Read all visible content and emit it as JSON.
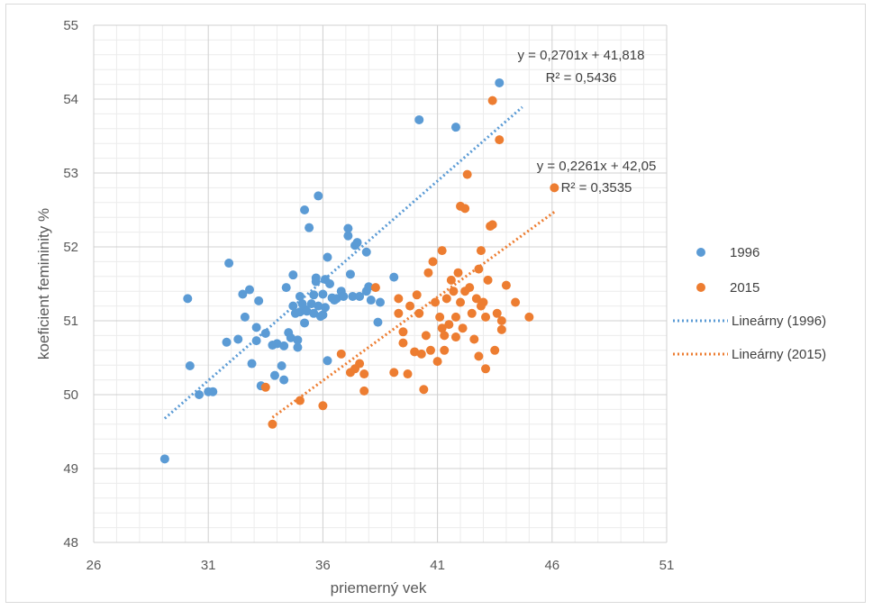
{
  "chart_data": {
    "type": "scatter",
    "title": "",
    "xlabel": "priemerný vek",
    "ylabel": "koeficient femininity %",
    "xlim": [
      26,
      51
    ],
    "ylim": [
      48,
      55
    ],
    "x_ticks": [
      26,
      31,
      36,
      41,
      46,
      51
    ],
    "y_ticks": [
      48,
      49,
      50,
      51,
      52,
      53,
      54,
      55
    ],
    "grid": true,
    "legend_position": "right",
    "series": [
      {
        "name": "1996",
        "color": "#5b9bd5",
        "points": [
          [
            29.1,
            49.13
          ],
          [
            30.2,
            50.39
          ],
          [
            30.1,
            51.3
          ],
          [
            30.6,
            50.0
          ],
          [
            31.0,
            50.04
          ],
          [
            31.2,
            50.04
          ],
          [
            31.8,
            50.71
          ],
          [
            31.9,
            51.78
          ],
          [
            32.3,
            50.75
          ],
          [
            32.5,
            51.36
          ],
          [
            32.6,
            51.05
          ],
          [
            32.8,
            51.42
          ],
          [
            32.9,
            50.42
          ],
          [
            33.1,
            50.91
          ],
          [
            33.1,
            50.73
          ],
          [
            33.2,
            51.27
          ],
          [
            33.3,
            50.12
          ],
          [
            33.5,
            50.83
          ],
          [
            33.8,
            50.67
          ],
          [
            33.9,
            50.26
          ],
          [
            34.0,
            50.69
          ],
          [
            34.2,
            50.39
          ],
          [
            34.3,
            50.2
          ],
          [
            34.3,
            50.66
          ],
          [
            34.4,
            51.45
          ],
          [
            34.5,
            50.84
          ],
          [
            34.6,
            50.77
          ],
          [
            34.7,
            51.62
          ],
          [
            34.7,
            51.2
          ],
          [
            34.8,
            51.1
          ],
          [
            34.9,
            50.74
          ],
          [
            34.9,
            50.64
          ],
          [
            35.0,
            51.33
          ],
          [
            35.0,
            51.12
          ],
          [
            35.1,
            51.23
          ],
          [
            35.2,
            50.97
          ],
          [
            35.2,
            51.16
          ],
          [
            35.2,
            52.5
          ],
          [
            35.3,
            51.13
          ],
          [
            35.4,
            52.26
          ],
          [
            35.5,
            51.23
          ],
          [
            35.6,
            51.35
          ],
          [
            35.6,
            51.1
          ],
          [
            35.7,
            51.53
          ],
          [
            35.7,
            51.58
          ],
          [
            35.8,
            52.69
          ],
          [
            35.8,
            51.2
          ],
          [
            35.9,
            51.06
          ],
          [
            36.0,
            51.08
          ],
          [
            36.0,
            51.36
          ],
          [
            36.1,
            51.18
          ],
          [
            36.1,
            51.56
          ],
          [
            36.2,
            50.46
          ],
          [
            36.2,
            51.86
          ],
          [
            36.3,
            51.5
          ],
          [
            36.4,
            51.31
          ],
          [
            36.5,
            51.28
          ],
          [
            36.6,
            51.3
          ],
          [
            36.8,
            51.4
          ],
          [
            36.9,
            51.33
          ],
          [
            37.1,
            52.15
          ],
          [
            37.1,
            52.25
          ],
          [
            37.2,
            51.63
          ],
          [
            37.3,
            51.33
          ],
          [
            37.4,
            52.02
          ],
          [
            37.5,
            52.06
          ],
          [
            37.6,
            51.33
          ],
          [
            37.9,
            51.93
          ],
          [
            37.9,
            51.4
          ],
          [
            38.0,
            51.46
          ],
          [
            38.1,
            51.28
          ],
          [
            38.4,
            50.98
          ],
          [
            38.5,
            51.25
          ],
          [
            39.1,
            51.59
          ],
          [
            40.2,
            53.72
          ],
          [
            41.8,
            53.62
          ],
          [
            43.7,
            54.22
          ]
        ],
        "trendline": {
          "name": "Lineárny (1996)",
          "slope": 0.2701,
          "intercept": 41.818,
          "x_range": [
            29.1,
            44.7
          ],
          "equation": "y = 0,2701x + 41,818",
          "r2": "R² = 0,5436"
        }
      },
      {
        "name": "2015",
        "color": "#ed7d31",
        "points": [
          [
            33.5,
            50.1
          ],
          [
            33.8,
            49.6
          ],
          [
            35.0,
            49.92
          ],
          [
            36.0,
            49.85
          ],
          [
            36.8,
            50.55
          ],
          [
            37.2,
            50.3
          ],
          [
            37.4,
            50.35
          ],
          [
            37.6,
            50.42
          ],
          [
            37.8,
            50.05
          ],
          [
            37.8,
            50.28
          ],
          [
            38.3,
            51.45
          ],
          [
            39.1,
            50.3
          ],
          [
            39.3,
            51.1
          ],
          [
            39.3,
            51.3
          ],
          [
            39.5,
            50.85
          ],
          [
            39.5,
            50.7
          ],
          [
            39.7,
            50.28
          ],
          [
            39.8,
            51.2
          ],
          [
            40.0,
            50.58
          ],
          [
            40.1,
            51.35
          ],
          [
            40.2,
            51.1
          ],
          [
            40.3,
            50.55
          ],
          [
            40.4,
            50.07
          ],
          [
            40.5,
            50.8
          ],
          [
            40.6,
            51.65
          ],
          [
            40.7,
            50.6
          ],
          [
            40.8,
            51.8
          ],
          [
            40.9,
            51.25
          ],
          [
            41.0,
            50.45
          ],
          [
            41.1,
            51.05
          ],
          [
            41.2,
            51.95
          ],
          [
            41.2,
            50.9
          ],
          [
            41.3,
            50.8
          ],
          [
            41.3,
            50.6
          ],
          [
            41.4,
            51.3
          ],
          [
            41.5,
            50.95
          ],
          [
            41.6,
            51.55
          ],
          [
            41.7,
            51.4
          ],
          [
            41.8,
            51.05
          ],
          [
            41.8,
            50.78
          ],
          [
            41.9,
            51.65
          ],
          [
            42.0,
            52.55
          ],
          [
            42.0,
            51.25
          ],
          [
            42.1,
            50.9
          ],
          [
            42.2,
            52.52
          ],
          [
            42.2,
            51.4
          ],
          [
            42.3,
            52.98
          ],
          [
            42.4,
            51.45
          ],
          [
            42.5,
            51.1
          ],
          [
            42.6,
            50.75
          ],
          [
            42.7,
            51.3
          ],
          [
            42.8,
            51.7
          ],
          [
            42.8,
            50.52
          ],
          [
            42.9,
            51.95
          ],
          [
            42.9,
            51.2
          ],
          [
            43.0,
            51.25
          ],
          [
            43.1,
            50.35
          ],
          [
            43.1,
            51.05
          ],
          [
            43.2,
            51.55
          ],
          [
            43.3,
            52.28
          ],
          [
            43.4,
            53.98
          ],
          [
            43.4,
            52.3
          ],
          [
            43.5,
            50.6
          ],
          [
            43.6,
            51.1
          ],
          [
            43.7,
            53.45
          ],
          [
            43.8,
            51.0
          ],
          [
            43.8,
            50.88
          ],
          [
            44.0,
            51.48
          ],
          [
            44.4,
            51.25
          ],
          [
            45.0,
            51.05
          ],
          [
            46.1,
            52.8
          ]
        ],
        "trendline": {
          "name": "Lineárny (2015)",
          "slope": 0.2261,
          "intercept": 42.05,
          "x_range": [
            33.8,
            46.1
          ],
          "equation": "y = 0,2261x + 42,05",
          "r2": "R² = 0,3535"
        }
      }
    ],
    "legend": [
      "1996",
      "2015",
      "Lineárny (1996)",
      "Lineárny (2015)"
    ]
  }
}
